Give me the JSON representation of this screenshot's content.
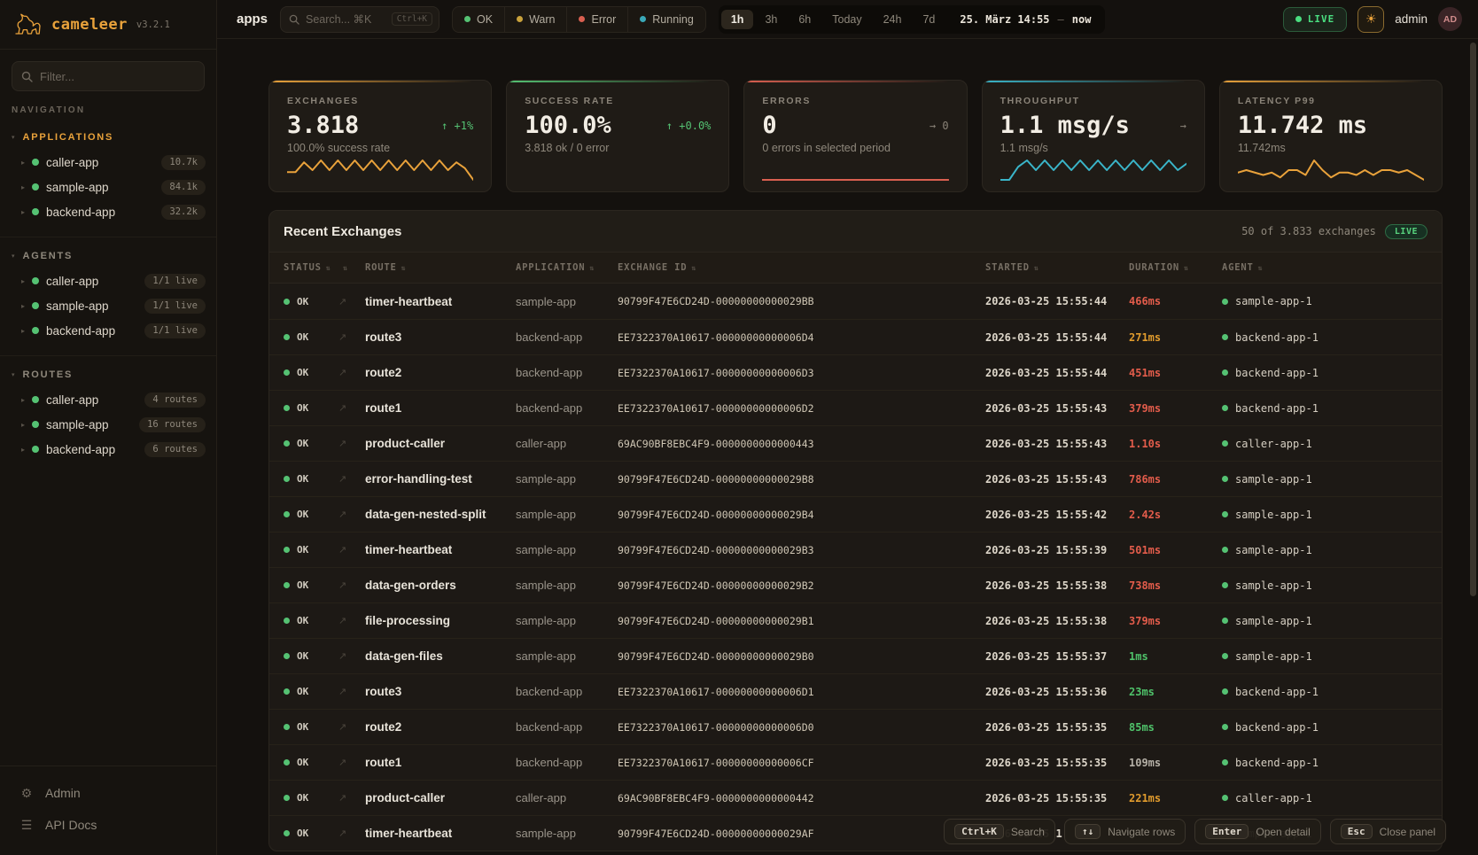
{
  "brand": {
    "name": "cameleer",
    "version": "v3.2.1"
  },
  "sidebar": {
    "filter_placeholder": "Filter...",
    "nav_label": "NAVIGATION",
    "sections": [
      {
        "title": "APPLICATIONS",
        "items": [
          {
            "name": "caller-app",
            "badge": "10.7k"
          },
          {
            "name": "sample-app",
            "badge": "84.1k"
          },
          {
            "name": "backend-app",
            "badge": "32.2k"
          }
        ]
      },
      {
        "title": "AGENTS",
        "items": [
          {
            "name": "caller-app",
            "badge": "1/1 live"
          },
          {
            "name": "sample-app",
            "badge": "1/1 live"
          },
          {
            "name": "backend-app",
            "badge": "1/1 live"
          }
        ]
      },
      {
        "title": "ROUTES",
        "items": [
          {
            "name": "caller-app",
            "badge": "4 routes"
          },
          {
            "name": "sample-app",
            "badge": "16 routes"
          },
          {
            "name": "backend-app",
            "badge": "6 routes"
          }
        ]
      }
    ],
    "footer": [
      {
        "label": "Admin",
        "icon": "⚙"
      },
      {
        "label": "API Docs",
        "icon": "☰"
      }
    ]
  },
  "topbar": {
    "context": "apps",
    "search_placeholder": "Search... ⌘K",
    "search_kbd": "Ctrl+K",
    "status_filters": [
      {
        "label": "OK",
        "color": "#55c273"
      },
      {
        "label": "Warn",
        "color": "#c9a23c"
      },
      {
        "label": "Error",
        "color": "#d95f50"
      },
      {
        "label": "Running",
        "color": "#3aa8b8"
      }
    ],
    "time_ranges": [
      {
        "label": "1h",
        "active": "on"
      },
      {
        "label": "3h"
      },
      {
        "label": "6h"
      },
      {
        "label": "Today"
      },
      {
        "label": "24h"
      },
      {
        "label": "7d"
      }
    ],
    "time_from": "25. März 14:55",
    "time_sep": "—",
    "time_to": "now",
    "live_label": "LIVE",
    "theme_icon": "☀",
    "user": "admin",
    "avatar": "AD"
  },
  "cards": [
    {
      "label": "EXCHANGES",
      "value": "3.818",
      "delta": "↑ +1%",
      "delta_level": "green",
      "subtitle": "100.0% success rate",
      "accent": "#e9a23b",
      "spark_color": "#e9a23b",
      "spark": [
        2,
        2,
        7,
        3,
        8,
        3,
        8,
        3,
        8,
        3,
        8,
        3,
        8,
        3,
        8,
        3,
        8,
        3,
        8,
        3,
        7,
        4,
        -2
      ]
    },
    {
      "label": "SUCCESS RATE",
      "value": "100.0%",
      "delta": "↑ +0.0%",
      "delta_level": "green",
      "subtitle": "3.818 ok / 0 error",
      "accent": "#55c273",
      "spark_color": "#55c273",
      "spark": null
    },
    {
      "label": "ERRORS",
      "value": "0",
      "delta": "→ 0",
      "delta_level": "gray",
      "subtitle": "0 errors in selected period",
      "accent": "#d95f50",
      "spark_color": "#d95f50",
      "spark": [
        0,
        0
      ]
    },
    {
      "label": "THROUGHPUT",
      "value": "1.1 msg/s",
      "delta": "→",
      "delta_level": "gray",
      "subtitle": "1.1 msg/s",
      "accent": "#3ab5c9",
      "spark_color": "#3ab5c9",
      "spark": [
        1,
        1,
        5,
        7,
        4,
        7,
        4,
        7,
        4,
        7,
        4,
        7,
        4,
        7,
        4,
        7,
        4,
        7,
        4,
        7,
        4,
        6
      ]
    },
    {
      "label": "LATENCY P99",
      "value": "11.742 ms",
      "delta": "",
      "delta_level": "gray",
      "subtitle": "11.742ms",
      "accent": "#e9a23b",
      "spark_color": "#e9a23b",
      "spark": [
        4,
        5,
        4,
        3,
        4,
        2,
        5,
        5,
        3,
        9,
        5,
        2,
        4,
        4,
        3,
        5,
        3,
        5,
        5,
        4,
        5,
        3,
        1
      ]
    }
  ],
  "table": {
    "title": "Recent Exchanges",
    "summary": "50 of 3.833 exchanges",
    "live_label": "LIVE",
    "sort_icon": "⇅",
    "link_icon": "↗",
    "columns": [
      {
        "label": "STATUS"
      },
      {
        "label": ""
      },
      {
        "label": "ROUTE"
      },
      {
        "label": "APPLICATION"
      },
      {
        "label": "EXCHANGE ID"
      },
      {
        "label": "STARTED"
      },
      {
        "label": "DURATION"
      },
      {
        "label": "AGENT"
      }
    ],
    "rows": [
      {
        "status": "OK",
        "route": "timer-heartbeat",
        "app": "sample-app",
        "exchange_id": "90799F47E6CD24D-00000000000029BB",
        "started": "2026-03-25 15:55:44",
        "duration": "466ms",
        "duration_level": "red",
        "agent": "sample-app-1"
      },
      {
        "status": "OK",
        "route": "route3",
        "app": "backend-app",
        "exchange_id": "EE7322370A10617-00000000000006D4",
        "started": "2026-03-25 15:55:44",
        "duration": "271ms",
        "duration_level": "orange",
        "agent": "backend-app-1"
      },
      {
        "status": "OK",
        "route": "route2",
        "app": "backend-app",
        "exchange_id": "EE7322370A10617-00000000000006D3",
        "started": "2026-03-25 15:55:44",
        "duration": "451ms",
        "duration_level": "red",
        "agent": "backend-app-1"
      },
      {
        "status": "OK",
        "route": "route1",
        "app": "backend-app",
        "exchange_id": "EE7322370A10617-00000000000006D2",
        "started": "2026-03-25 15:55:43",
        "duration": "379ms",
        "duration_level": "red",
        "agent": "backend-app-1"
      },
      {
        "status": "OK",
        "route": "product-caller",
        "app": "caller-app",
        "exchange_id": "69AC90BF8EBC4F9-0000000000000443",
        "started": "2026-03-25 15:55:43",
        "duration": "1.10s",
        "duration_level": "red",
        "agent": "caller-app-1"
      },
      {
        "status": "OK",
        "route": "error-handling-test",
        "app": "sample-app",
        "exchange_id": "90799F47E6CD24D-00000000000029B8",
        "started": "2026-03-25 15:55:43",
        "duration": "786ms",
        "duration_level": "red",
        "agent": "sample-app-1"
      },
      {
        "status": "OK",
        "route": "data-gen-nested-split",
        "app": "sample-app",
        "exchange_id": "90799F47E6CD24D-00000000000029B4",
        "started": "2026-03-25 15:55:42",
        "duration": "2.42s",
        "duration_level": "red",
        "agent": "sample-app-1"
      },
      {
        "status": "OK",
        "route": "timer-heartbeat",
        "app": "sample-app",
        "exchange_id": "90799F47E6CD24D-00000000000029B3",
        "started": "2026-03-25 15:55:39",
        "duration": "501ms",
        "duration_level": "red",
        "agent": "sample-app-1"
      },
      {
        "status": "OK",
        "route": "data-gen-orders",
        "app": "sample-app",
        "exchange_id": "90799F47E6CD24D-00000000000029B2",
        "started": "2026-03-25 15:55:38",
        "duration": "738ms",
        "duration_level": "red",
        "agent": "sample-app-1"
      },
      {
        "status": "OK",
        "route": "file-processing",
        "app": "sample-app",
        "exchange_id": "90799F47E6CD24D-00000000000029B1",
        "started": "2026-03-25 15:55:38",
        "duration": "379ms",
        "duration_level": "red",
        "agent": "sample-app-1"
      },
      {
        "status": "OK",
        "route": "data-gen-files",
        "app": "sample-app",
        "exchange_id": "90799F47E6CD24D-00000000000029B0",
        "started": "2026-03-25 15:55:37",
        "duration": "1ms",
        "duration_level": "green",
        "agent": "sample-app-1"
      },
      {
        "status": "OK",
        "route": "route3",
        "app": "backend-app",
        "exchange_id": "EE7322370A10617-00000000000006D1",
        "started": "2026-03-25 15:55:36",
        "duration": "23ms",
        "duration_level": "green",
        "agent": "backend-app-1"
      },
      {
        "status": "OK",
        "route": "route2",
        "app": "backend-app",
        "exchange_id": "EE7322370A10617-00000000000006D0",
        "started": "2026-03-25 15:55:35",
        "duration": "85ms",
        "duration_level": "green",
        "agent": "backend-app-1"
      },
      {
        "status": "OK",
        "route": "route1",
        "app": "backend-app",
        "exchange_id": "EE7322370A10617-00000000000006CF",
        "started": "2026-03-25 15:55:35",
        "duration": "109ms",
        "duration_level": "neutral",
        "agent": "backend-app-1"
      },
      {
        "status": "OK",
        "route": "product-caller",
        "app": "caller-app",
        "exchange_id": "69AC90BF8EBC4F9-0000000000000442",
        "started": "2026-03-25 15:55:35",
        "duration": "221ms",
        "duration_level": "orange",
        "agent": "caller-app-1"
      },
      {
        "status": "OK",
        "route": "timer-heartbeat",
        "app": "sample-app",
        "exchange_id": "90799F47E6CD24D-00000000000029AF",
        "started": "2026-03-25 1",
        "duration": "",
        "duration_level": "neutral",
        "agent": "sample-app-1"
      }
    ]
  },
  "hints": [
    {
      "key": "Ctrl+K",
      "label": "Search"
    },
    {
      "key": "↑↓",
      "label": "Navigate rows"
    },
    {
      "key": "Enter",
      "label": "Open detail"
    },
    {
      "key": "Esc",
      "label": "Close panel"
    }
  ]
}
